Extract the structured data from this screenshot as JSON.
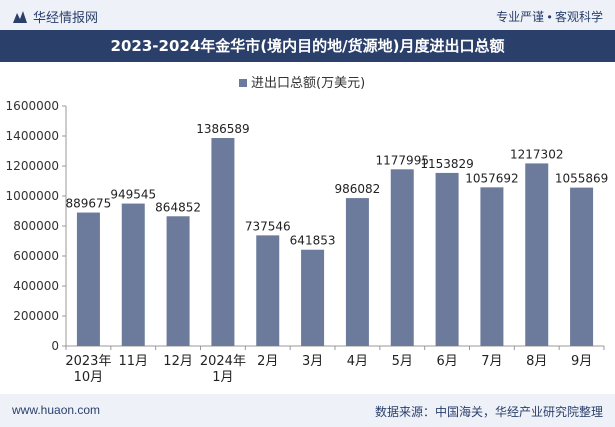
{
  "header": {
    "brand": "华经情报网",
    "tagline": "专业严谨 • 客观科学"
  },
  "chart_data": {
    "type": "bar",
    "title": "2023-2024年金华市(境内目的地/货源地)月度进出口总额",
    "legend": "进出口总额(万美元)",
    "categories": [
      "2023年\n10月",
      "11月",
      "12月",
      "2024年\n1月",
      "2月",
      "3月",
      "4月",
      "5月",
      "6月",
      "7月",
      "8月",
      "9月"
    ],
    "values": [
      889675,
      949545,
      864852,
      1386589,
      737546,
      641853,
      986082,
      1177995,
      1153829,
      1057692,
      1217302,
      1055869
    ],
    "ylim": [
      0,
      1600000
    ],
    "yticks": [
      0,
      200000,
      400000,
      600000,
      800000,
      1000000,
      1200000,
      1400000,
      1600000
    ],
    "xlabel": "",
    "ylabel": "",
    "color": "#6c7a9c"
  },
  "footer": {
    "site": "www.huaon.com",
    "source": "数据来源：中国海关，华经产业研究院整理"
  }
}
